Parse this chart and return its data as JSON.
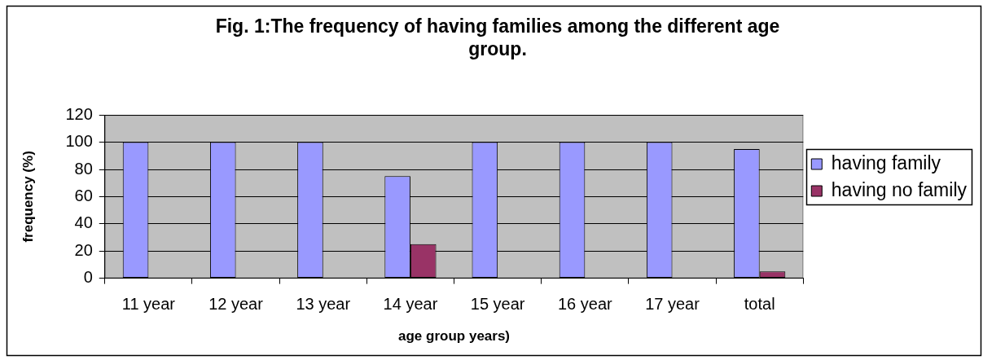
{
  "chart_data": {
    "type": "bar",
    "title": "Fig. 1:The frequency of having families among the different age group.",
    "xlabel": "age group years)",
    "ylabel": "frequency (%)",
    "categories": [
      "11 year",
      "12 year",
      "13 year",
      "14 year",
      "15 year",
      "16 year",
      "17 year",
      "total"
    ],
    "series": [
      {
        "name": "having family",
        "color": "#9999ff",
        "values": [
          100,
          100,
          100,
          75,
          100,
          100,
          100,
          95
        ]
      },
      {
        "name": "having no family",
        "color": "#993366",
        "values": [
          0,
          0,
          0,
          25,
          0,
          0,
          0,
          5
        ]
      }
    ],
    "ylim": [
      0,
      120
    ],
    "yticks": [
      0,
      20,
      40,
      60,
      80,
      100,
      120
    ],
    "grid": "y",
    "legend": "right"
  }
}
